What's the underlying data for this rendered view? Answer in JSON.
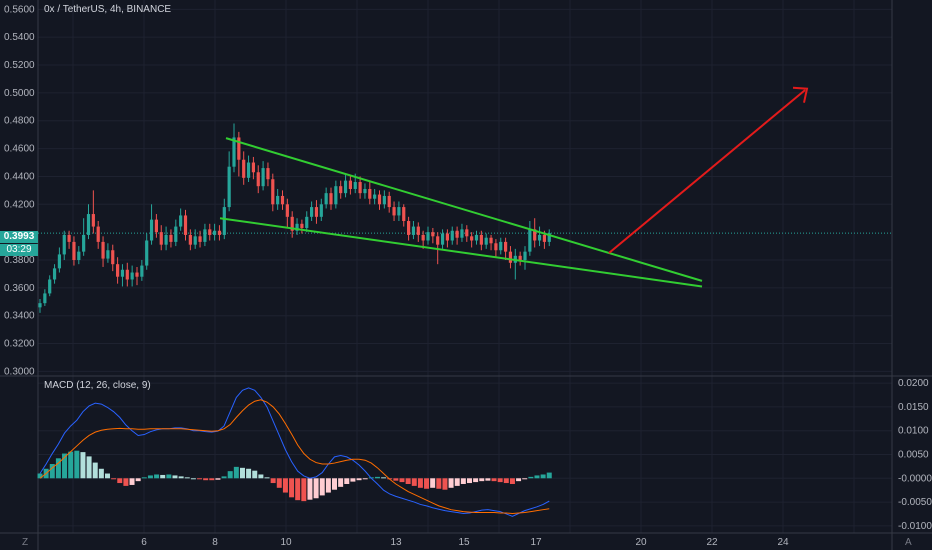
{
  "header": {
    "title": "0x / TetherUS, 4h, BINANCE"
  },
  "price_tag": {
    "value": "0.3993",
    "countdown": "03:29"
  },
  "macd": {
    "label": "MACD (12, 26, close, 9)"
  },
  "corner": {
    "left_icon": "Z",
    "right_icon": "A"
  },
  "colors": {
    "background": "#131722",
    "grid": "#1e2230",
    "up": "#26a69a",
    "down": "#ef5350",
    "hist_up_strong": "#26a69a",
    "hist_up_weak": "#b2dfdb",
    "hist_down_strong": "#ef5350",
    "hist_down_weak": "#ffcdd2",
    "macd_line": "#2962ff",
    "signal_line": "#ff6d00",
    "wedge": "#32cd32",
    "arrow": "#e31b1b",
    "price_line": "#26a69a"
  },
  "chart_data": [
    {
      "type": "candlestick",
      "title": "0x / TetherUS, 4h, BINANCE",
      "ylim": [
        0.2967,
        0.5667
      ],
      "y_ticks": [
        "0.5600",
        "0.5400",
        "0.5200",
        "0.5000",
        "0.4800",
        "0.4600",
        "0.4400",
        "0.4200",
        "0.3993",
        "0.3800",
        "0.3600",
        "0.3400",
        "0.3200",
        "0.3000"
      ],
      "x_ticks": [
        "6",
        "8",
        "10",
        "13",
        "15",
        "17",
        "20",
        "22",
        "24"
      ],
      "current_price": 0.3993,
      "candles": [
        [
          0.346,
          0.349,
          0.342,
          0.352
        ],
        [
          0.349,
          0.356,
          0.347,
          0.359
        ],
        [
          0.356,
          0.366,
          0.354,
          0.369
        ],
        [
          0.366,
          0.374,
          0.363,
          0.377
        ],
        [
          0.374,
          0.384,
          0.371,
          0.389
        ],
        [
          0.384,
          0.398,
          0.38,
          0.401
        ],
        [
          0.398,
          0.393,
          0.388,
          0.401
        ],
        [
          0.393,
          0.38,
          0.376,
          0.397
        ],
        [
          0.38,
          0.386,
          0.377,
          0.39
        ],
        [
          0.386,
          0.398,
          0.383,
          0.41
        ],
        [
          0.398,
          0.413,
          0.395,
          0.42
        ],
        [
          0.413,
          0.404,
          0.399,
          0.43
        ],
        [
          0.404,
          0.393,
          0.388,
          0.408
        ],
        [
          0.393,
          0.381,
          0.375,
          0.397
        ],
        [
          0.381,
          0.387,
          0.378,
          0.392
        ],
        [
          0.387,
          0.377,
          0.372,
          0.391
        ],
        [
          0.377,
          0.368,
          0.363,
          0.382
        ],
        [
          0.368,
          0.373,
          0.361,
          0.377
        ],
        [
          0.373,
          0.366,
          0.361,
          0.378
        ],
        [
          0.366,
          0.371,
          0.361,
          0.376
        ],
        [
          0.371,
          0.368,
          0.362,
          0.375
        ],
        [
          0.368,
          0.376,
          0.365,
          0.38
        ],
        [
          0.376,
          0.394,
          0.373,
          0.399
        ],
        [
          0.394,
          0.409,
          0.391,
          0.42
        ],
        [
          0.409,
          0.4,
          0.396,
          0.413
        ],
        [
          0.4,
          0.391,
          0.387,
          0.405
        ],
        [
          0.391,
          0.398,
          0.387,
          0.404
        ],
        [
          0.398,
          0.393,
          0.389,
          0.402
        ],
        [
          0.393,
          0.404,
          0.39,
          0.409
        ],
        [
          0.404,
          0.412,
          0.401,
          0.417
        ],
        [
          0.412,
          0.398,
          0.394,
          0.416
        ],
        [
          0.398,
          0.391,
          0.387,
          0.402
        ],
        [
          0.391,
          0.397,
          0.388,
          0.402
        ],
        [
          0.397,
          0.393,
          0.389,
          0.401
        ],
        [
          0.393,
          0.402,
          0.39,
          0.406
        ],
        [
          0.402,
          0.398,
          0.394,
          0.406
        ],
        [
          0.398,
          0.401,
          0.394,
          0.406
        ],
        [
          0.401,
          0.398,
          0.394,
          0.405
        ],
        [
          0.398,
          0.418,
          0.395,
          0.424
        ],
        [
          0.418,
          0.447,
          0.415,
          0.458
        ],
        [
          0.447,
          0.468,
          0.443,
          0.478
        ],
        [
          0.468,
          0.452,
          0.44,
          0.472
        ],
        [
          0.452,
          0.439,
          0.434,
          0.458
        ],
        [
          0.439,
          0.45,
          0.436,
          0.455
        ],
        [
          0.45,
          0.443,
          0.438,
          0.454
        ],
        [
          0.443,
          0.433,
          0.428,
          0.448
        ],
        [
          0.433,
          0.446,
          0.43,
          0.451
        ],
        [
          0.446,
          0.438,
          0.433,
          0.45
        ],
        [
          0.438,
          0.42,
          0.415,
          0.442
        ],
        [
          0.42,
          0.426,
          0.416,
          0.431
        ],
        [
          0.426,
          0.42,
          0.416,
          0.43
        ],
        [
          0.42,
          0.411,
          0.403,
          0.424
        ],
        [
          0.411,
          0.401,
          0.396,
          0.415
        ],
        [
          0.401,
          0.406,
          0.398,
          0.41
        ],
        [
          0.406,
          0.403,
          0.399,
          0.409
        ],
        [
          0.403,
          0.411,
          0.4,
          0.415
        ],
        [
          0.411,
          0.418,
          0.408,
          0.422
        ],
        [
          0.418,
          0.411,
          0.406,
          0.423
        ],
        [
          0.411,
          0.42,
          0.408,
          0.424
        ],
        [
          0.42,
          0.428,
          0.417,
          0.432
        ],
        [
          0.428,
          0.42,
          0.416,
          0.432
        ],
        [
          0.42,
          0.433,
          0.417,
          0.437
        ],
        [
          0.433,
          0.428,
          0.424,
          0.437
        ],
        [
          0.428,
          0.437,
          0.425,
          0.441
        ],
        [
          0.437,
          0.431,
          0.427,
          0.44
        ],
        [
          0.431,
          0.436,
          0.428,
          0.442
        ],
        [
          0.436,
          0.428,
          0.424,
          0.44
        ],
        [
          0.428,
          0.431,
          0.424,
          0.435
        ],
        [
          0.431,
          0.424,
          0.42,
          0.436
        ],
        [
          0.424,
          0.427,
          0.42,
          0.431
        ],
        [
          0.427,
          0.42,
          0.416,
          0.43
        ],
        [
          0.42,
          0.426,
          0.417,
          0.43
        ],
        [
          0.426,
          0.418,
          0.414,
          0.429
        ],
        [
          0.418,
          0.412,
          0.408,
          0.422
        ],
        [
          0.412,
          0.418,
          0.408,
          0.422
        ],
        [
          0.418,
          0.408,
          0.404,
          0.42
        ],
        [
          0.408,
          0.398,
          0.394,
          0.411
        ],
        [
          0.398,
          0.404,
          0.395,
          0.408
        ],
        [
          0.404,
          0.398,
          0.393,
          0.407
        ],
        [
          0.398,
          0.394,
          0.388,
          0.401
        ],
        [
          0.394,
          0.4,
          0.391,
          0.404
        ],
        [
          0.4,
          0.397,
          0.392,
          0.403
        ],
        [
          0.397,
          0.391,
          0.377,
          0.4
        ],
        [
          0.391,
          0.399,
          0.388,
          0.402
        ],
        [
          0.399,
          0.394,
          0.389,
          0.402
        ],
        [
          0.394,
          0.401,
          0.391,
          0.404
        ],
        [
          0.401,
          0.396,
          0.391,
          0.404
        ],
        [
          0.396,
          0.402,
          0.393,
          0.406
        ],
        [
          0.402,
          0.397,
          0.393,
          0.405
        ],
        [
          0.397,
          0.394,
          0.389,
          0.4
        ],
        [
          0.394,
          0.398,
          0.391,
          0.401
        ],
        [
          0.398,
          0.391,
          0.387,
          0.401
        ],
        [
          0.391,
          0.396,
          0.388,
          0.399
        ],
        [
          0.396,
          0.392,
          0.387,
          0.398
        ],
        [
          0.392,
          0.387,
          0.382,
          0.395
        ],
        [
          0.387,
          0.393,
          0.384,
          0.396
        ],
        [
          0.393,
          0.386,
          0.38,
          0.396
        ],
        [
          0.386,
          0.378,
          0.374,
          0.39
        ],
        [
          0.378,
          0.383,
          0.366,
          0.388
        ],
        [
          0.383,
          0.38,
          0.376,
          0.386
        ],
        [
          0.38,
          0.386,
          0.373,
          0.39
        ],
        [
          0.386,
          0.402,
          0.383,
          0.408
        ],
        [
          0.402,
          0.394,
          0.389,
          0.41
        ],
        [
          0.394,
          0.398,
          0.39,
          0.404
        ],
        [
          0.398,
          0.393,
          0.388,
          0.401
        ],
        [
          0.393,
          0.3993,
          0.39,
          0.402
        ]
      ],
      "annotations": {
        "wedge_upper": [
          [
            0,
            0.4675
          ],
          [
            1,
            0.365
          ]
        ],
        "wedge_lower": [
          [
            0,
            0.41
          ],
          [
            1,
            0.361
          ]
        ],
        "breakout_arrow": [
          [
            0,
            0.385
          ],
          [
            1,
            0.502
          ]
        ]
      }
    },
    {
      "type": "histogram+line",
      "title": "MACD (12, 26, close, 9)",
      "ylim": [
        -0.0115,
        0.0215
      ],
      "y_ticks": [
        "0.0200",
        "0.0150",
        "0.0100",
        "0.0050",
        "-0.0000",
        "-0.0050",
        "-0.0100"
      ],
      "histogram": [
        0.001,
        0.002,
        0.003,
        0.0042,
        0.0052,
        0.0056,
        0.0058,
        0.0055,
        0.0046,
        0.0033,
        0.002,
        0.001,
        -0.0002,
        -0.001,
        -0.0016,
        -0.0014,
        -0.0006,
        0.0002,
        0.0006,
        0.0008,
        0.0007,
        0.0008,
        0.0006,
        0.0004,
        0.0002,
        0.0,
        -0.0002,
        -0.0004,
        -0.0004,
        -0.0003,
        0.0004,
        0.0015,
        0.0024,
        0.0022,
        0.002,
        0.0016,
        0.0008,
        0.0002,
        -0.001,
        -0.002,
        -0.003,
        -0.004,
        -0.0046,
        -0.0048,
        -0.0045,
        -0.0042,
        -0.0036,
        -0.003,
        -0.0024,
        -0.0018,
        -0.0012,
        -0.0007,
        -0.0004,
        -0.0002,
        0.0002,
        0.0003,
        0.0002,
        -0.0002,
        -0.0005,
        -0.0008,
        -0.0012,
        -0.0016,
        -0.002,
        -0.0022,
        -0.002,
        -0.0022,
        -0.0024,
        -0.002,
        -0.0016,
        -0.0012,
        -0.001,
        -0.0008,
        -0.0006,
        -0.0005,
        -0.0006,
        -0.0008,
        -0.001,
        -0.0012,
        -0.0006,
        -0.0002,
        0.0003,
        0.0006,
        0.0008,
        0.0012
      ],
      "macd": [
        0.001,
        0.003,
        0.0052,
        0.0072,
        0.0095,
        0.011,
        0.0122,
        0.014,
        0.0152,
        0.0158,
        0.0156,
        0.0149,
        0.014,
        0.0128,
        0.0112,
        0.01,
        0.009,
        0.0092,
        0.0098,
        0.0102,
        0.0104,
        0.0104,
        0.0106,
        0.0106,
        0.0104,
        0.01,
        0.01,
        0.0098,
        0.0097,
        0.0099,
        0.011,
        0.014,
        0.017,
        0.0185,
        0.019,
        0.0185,
        0.017,
        0.015,
        0.012,
        0.009,
        0.006,
        0.0035,
        0.0015,
        0.0005,
        0.0,
        0.0003,
        0.0012,
        0.003,
        0.0045,
        0.0048,
        0.0045,
        0.0038,
        0.0028,
        0.0015,
        0.0,
        -0.0012,
        -0.0025,
        -0.0033,
        -0.0038,
        -0.0042,
        -0.0046,
        -0.005,
        -0.0055,
        -0.0058,
        -0.0062,
        -0.0065,
        -0.0068,
        -0.007,
        -0.0072,
        -0.0074,
        -0.0073,
        -0.007,
        -0.0067,
        -0.0066,
        -0.0068,
        -0.007,
        -0.0075,
        -0.008,
        -0.0074,
        -0.0068,
        -0.0064,
        -0.006,
        -0.0055,
        -0.0048
      ],
      "signal": [
        0.0,
        0.001,
        0.0022,
        0.0032,
        0.0044,
        0.0056,
        0.0068,
        0.008,
        0.009,
        0.0097,
        0.0101,
        0.0103,
        0.0104,
        0.0105,
        0.0104,
        0.0104,
        0.0103,
        0.0103,
        0.0104,
        0.0104,
        0.0104,
        0.0104,
        0.0104,
        0.0104,
        0.0103,
        0.0102,
        0.0101,
        0.01,
        0.0099,
        0.01,
        0.0104,
        0.0113,
        0.0128,
        0.0142,
        0.0154,
        0.0162,
        0.0165,
        0.016,
        0.015,
        0.0135,
        0.0115,
        0.0093,
        0.007,
        0.0052,
        0.004,
        0.0033,
        0.003,
        0.003,
        0.0032,
        0.0035,
        0.0038,
        0.004,
        0.004,
        0.0038,
        0.0032,
        0.0022,
        0.001,
        -0.0002,
        -0.0012,
        -0.002,
        -0.0028,
        -0.0034,
        -0.004,
        -0.0046,
        -0.0052,
        -0.0058,
        -0.0062,
        -0.0066,
        -0.0068,
        -0.007,
        -0.0071,
        -0.0072,
        -0.0072,
        -0.0072,
        -0.0072,
        -0.0073,
        -0.0073,
        -0.0074,
        -0.0073,
        -0.0072,
        -0.007,
        -0.0068,
        -0.0066,
        -0.0064
      ]
    }
  ]
}
